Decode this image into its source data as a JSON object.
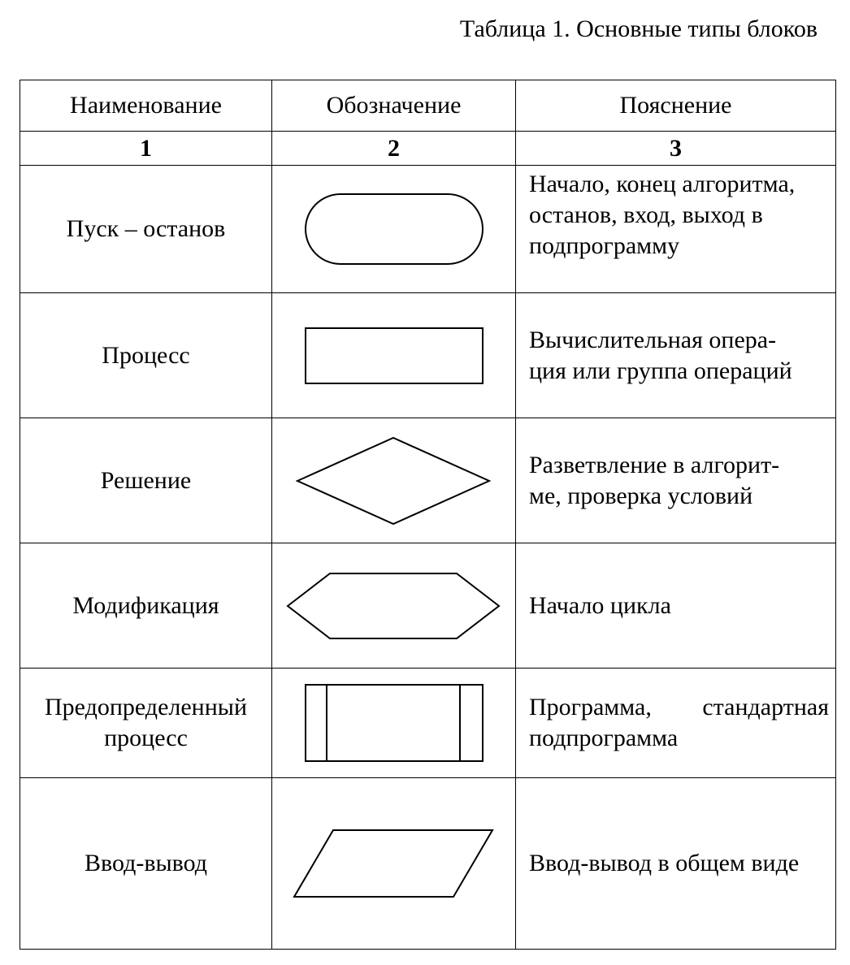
{
  "caption": "Таблица 1. Основные типы блоков",
  "headers": {
    "name": "Наименование",
    "symbol": "Обозначение",
    "description": "Пояснение"
  },
  "column_numbers": [
    "1",
    "2",
    "3"
  ],
  "rows": [
    {
      "name": "Пуск – останов",
      "shape": "terminator",
      "description_lines": [
        "Начало, конец алгоритма,",
        "останов, вход, выход в",
        "подпрограмму"
      ]
    },
    {
      "name": "Процесс",
      "shape": "process-rectangle",
      "description_lines": [
        "Вычислительная опера-",
        "ция или группа операций"
      ]
    },
    {
      "name": "Решение",
      "shape": "decision-diamond",
      "description_lines": [
        "Разветвление в алгорит-",
        "ме, проверка условий"
      ]
    },
    {
      "name": "Модификация",
      "shape": "modification-hexagon",
      "description_lines": [
        "Начало цикла"
      ]
    },
    {
      "name_lines": [
        "Предопределенный",
        "процесс"
      ],
      "shape": "predefined-process",
      "description_lines": [
        "Программа, стандартная",
        "подпрограмма"
      ]
    },
    {
      "name": "Ввод-вывод",
      "shape": "io-parallelogram",
      "description_lines": [
        "Ввод-вывод в общем виде"
      ]
    }
  ]
}
